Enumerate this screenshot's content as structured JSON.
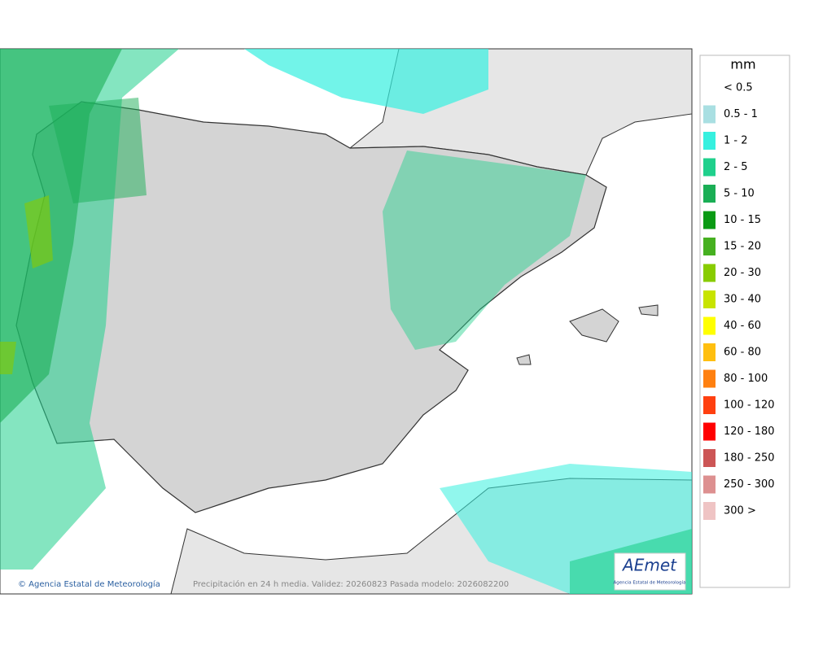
{
  "legend": {
    "title": "mm",
    "items": [
      {
        "label": "< 0.5"
      },
      {
        "label": "0.5 - 1",
        "color": "#a9dfe2"
      },
      {
        "label": "1 - 2",
        "color": "#36f0df"
      },
      {
        "label": "2 - 5",
        "color": "#1fd08c"
      },
      {
        "label": "5 - 10",
        "color": "#1aae55"
      },
      {
        "label": "10 - 15",
        "color": "#0a9a14"
      },
      {
        "label": "15 - 20",
        "color": "#46b020"
      },
      {
        "label": "20 - 30",
        "color": "#88cc00"
      },
      {
        "label": "30 - 40",
        "color": "#c8e400"
      },
      {
        "label": "40 - 60",
        "color": "#ffff00"
      },
      {
        "label": "60 - 80",
        "color": "#ffbf10"
      },
      {
        "label": "80 - 100",
        "color": "#ff8010"
      },
      {
        "label": "100 - 120",
        "color": "#ff4010"
      },
      {
        "label": "120 - 180",
        "color": "#ff0000"
      },
      {
        "label": "180 - 250",
        "color": "#cc5555"
      },
      {
        "label": "250 - 300",
        "color": "#dd9090"
      },
      {
        "label": "300 >",
        "color": "#efc4c4"
      }
    ]
  },
  "footer": {
    "credit": "© Agencia Estatal de Meteorología",
    "caption": "Precipitación en 24 h media. Validez: 20260823 Pasada modelo: 2026082200"
  },
  "logo": {
    "name": "AEmet",
    "subtitle": "Agencia Estatal de Meteorología"
  }
}
